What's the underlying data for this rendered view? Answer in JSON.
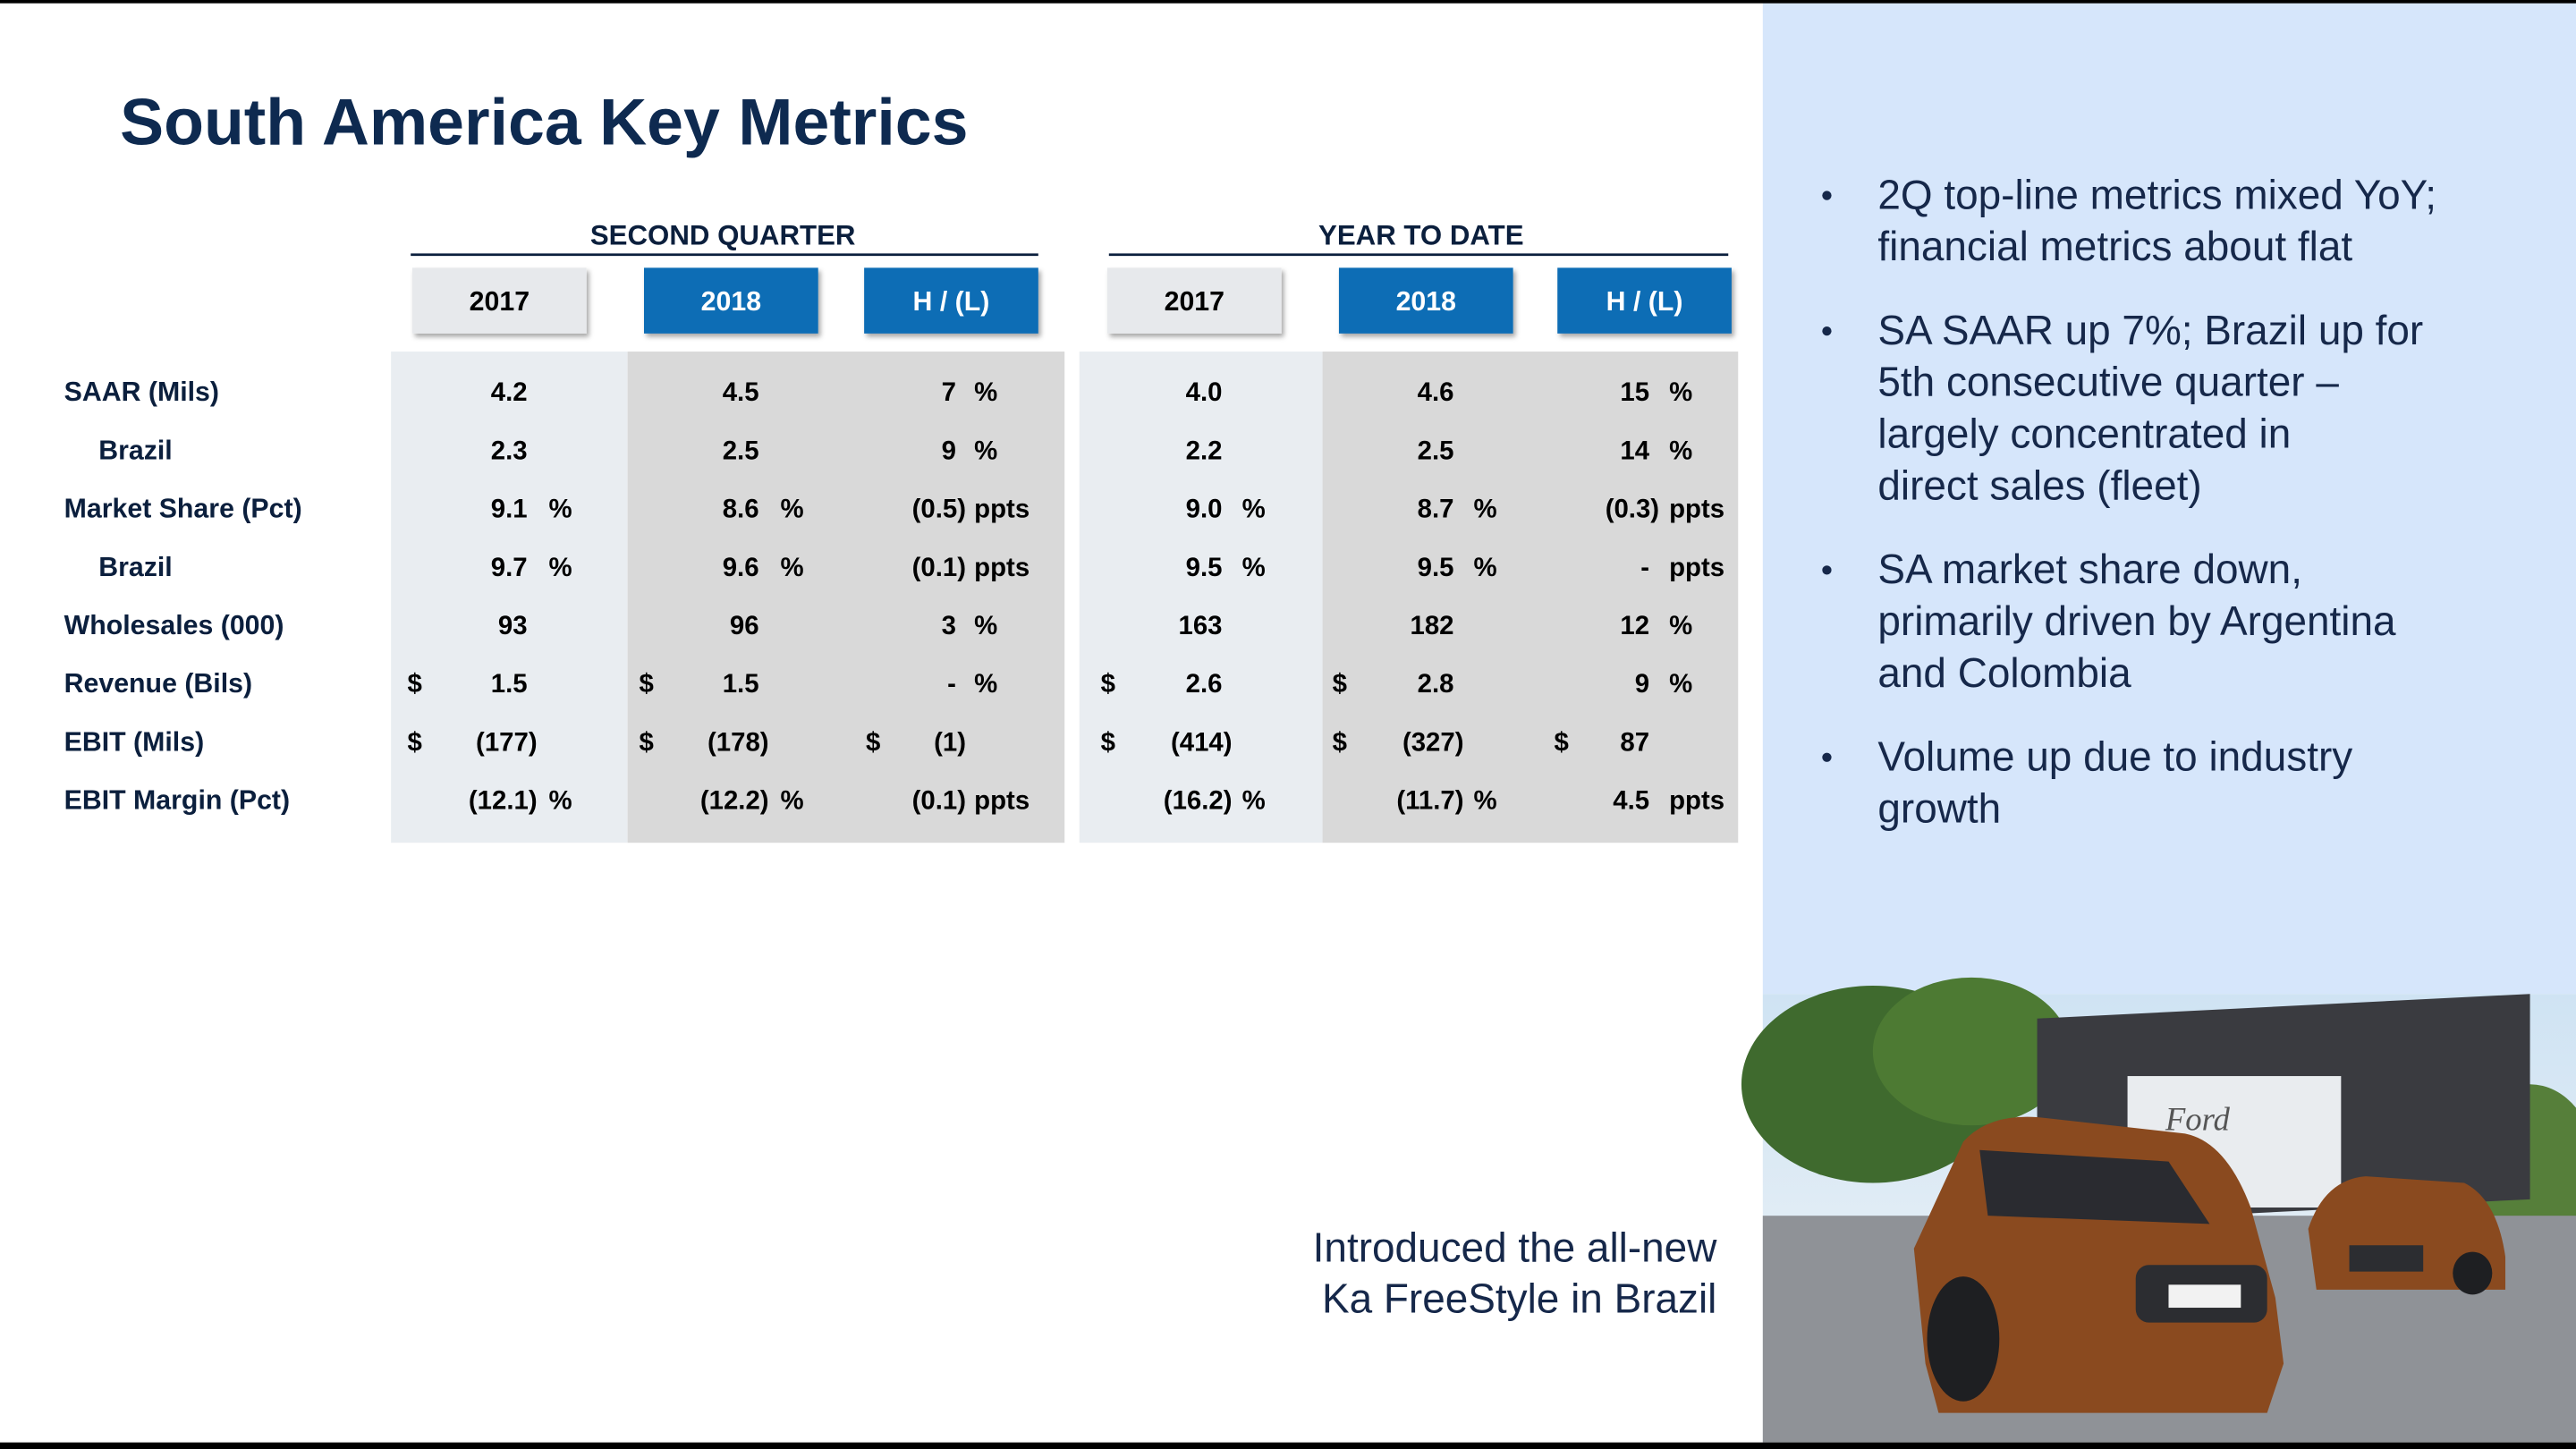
{
  "header": {
    "title": "South America Key Metrics"
  },
  "table": {
    "groups": [
      {
        "title": "SECOND QUARTER",
        "columns": [
          "2017",
          "2018",
          "H / (L)"
        ]
      },
      {
        "title": "YEAR TO DATE",
        "columns": [
          "2017",
          "2018",
          "H / (L)"
        ]
      }
    ],
    "rows": [
      {
        "label": "SAAR (Mils)",
        "cells": [
          {
            "value": "4.2"
          },
          {
            "value": "4.5"
          },
          {
            "value": "7",
            "unit": "%"
          },
          {
            "value": "4.0"
          },
          {
            "value": "4.6"
          },
          {
            "value": "15",
            "unit": "%"
          }
        ]
      },
      {
        "label": "Brazil",
        "cells": [
          {
            "value": "2.3"
          },
          {
            "value": "2.5"
          },
          {
            "value": "9",
            "unit": "%"
          },
          {
            "value": "2.2"
          },
          {
            "value": "2.5"
          },
          {
            "value": "14",
            "unit": "%"
          }
        ]
      },
      {
        "label": "Market Share (Pct)",
        "cells": [
          {
            "value": "9.1",
            "unit": "%"
          },
          {
            "value": "8.6",
            "unit": "%"
          },
          {
            "value": "(0.5)",
            "unit": "ppts"
          },
          {
            "value": "9.0",
            "unit": "%"
          },
          {
            "value": "8.7",
            "unit": "%"
          },
          {
            "value": "(0.3)",
            "unit": "ppts"
          }
        ]
      },
      {
        "label": "Brazil",
        "cells": [
          {
            "value": "9.7",
            "unit": "%"
          },
          {
            "value": "9.6",
            "unit": "%"
          },
          {
            "value": "(0.1)",
            "unit": "ppts"
          },
          {
            "value": "9.5",
            "unit": "%"
          },
          {
            "value": "9.5",
            "unit": "%"
          },
          {
            "value": "-",
            "unit": "ppts"
          }
        ]
      },
      {
        "label": "Wholesales (000)",
        "cells": [
          {
            "value": "93"
          },
          {
            "value": "96"
          },
          {
            "value": "3",
            "unit": "%"
          },
          {
            "value": "163"
          },
          {
            "value": "182"
          },
          {
            "value": "12",
            "unit": "%"
          }
        ]
      },
      {
        "label": "Revenue (Bils)",
        "cells": [
          {
            "currency": "$",
            "value": "1.5"
          },
          {
            "currency": "$",
            "value": "1.5"
          },
          {
            "value": "-",
            "unit": "%"
          },
          {
            "currency": "$",
            "value": "2.6"
          },
          {
            "currency": "$",
            "value": "2.8"
          },
          {
            "value": "9",
            "unit": "%"
          }
        ]
      },
      {
        "label": "EBIT (Mils)",
        "cells": [
          {
            "currency": "$",
            "value": "(177)"
          },
          {
            "currency": "$",
            "value": "(178)"
          },
          {
            "currency": "$",
            "value": "(1)"
          },
          {
            "currency": "$",
            "value": "(414)"
          },
          {
            "currency": "$",
            "value": "(327)"
          },
          {
            "currency": "$",
            "value": "87"
          }
        ]
      },
      {
        "label": "EBIT Margin (Pct)",
        "cells": [
          {
            "value": "(12.1)",
            "unit": "%"
          },
          {
            "value": "(12.2)",
            "unit": "%"
          },
          {
            "value": "(0.1)",
            "unit": "ppts"
          },
          {
            "value": "(16.2)",
            "unit": "%"
          },
          {
            "value": "(11.7)",
            "unit": "%"
          },
          {
            "value": "4.5",
            "unit": "ppts"
          }
        ]
      }
    ]
  },
  "bullets": [
    [
      "2Q top-line metrics mixed YoY;",
      "financial metrics about flat"
    ],
    [
      "SA SAAR up 7%; Brazil up for",
      "5th consecutive quarter –",
      "largely concentrated in",
      "direct sales (fleet)"
    ],
    [
      "SA market share down,",
      "primarily driven by Argentina",
      "and Colombia"
    ],
    [
      "Volume up due to industry",
      "growth"
    ]
  ],
  "caption": [
    "Introduced the all-new",
    "Ka FreeStyle in Brazil"
  ]
}
